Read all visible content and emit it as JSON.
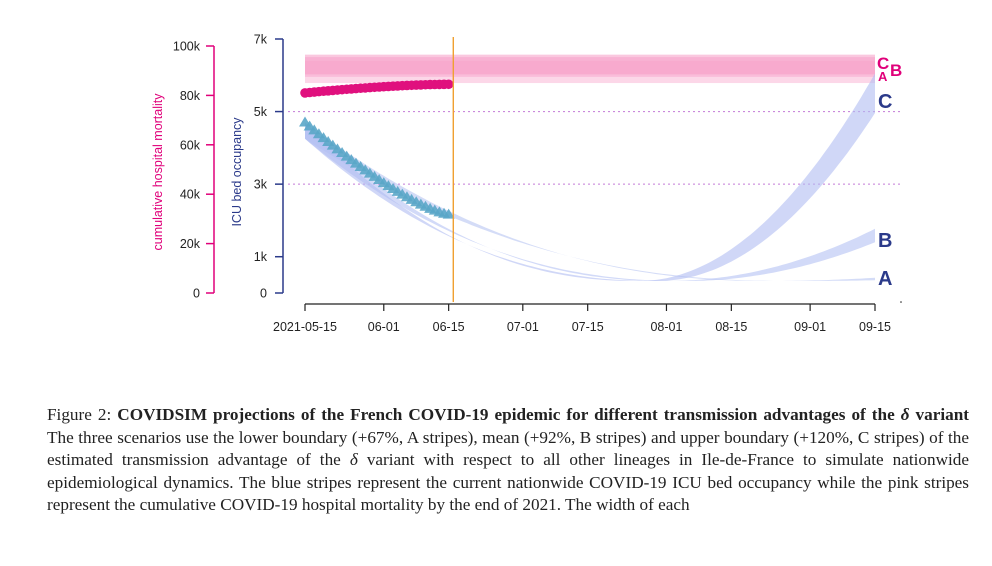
{
  "chart_data": {
    "type": "area",
    "x_ticks": [
      "2021-05-15",
      "06-01",
      "06-15",
      "07-01",
      "07-15",
      "08-01",
      "08-15",
      "09-01",
      "09-15"
    ],
    "x_tick_days": [
      0,
      17,
      31,
      47,
      61,
      78,
      92,
      109,
      123
    ],
    "today_day": 32,
    "left_axis": {
      "label": "cumulative hospital mortality",
      "ticks": [
        "0",
        "20k",
        "40k",
        "60k",
        "80k",
        "100k"
      ],
      "tick_values": [
        0,
        20000,
        40000,
        60000,
        80000,
        100000
      ],
      "color": "#e0007a"
    },
    "right_axis": {
      "label": "ICU bed occupancy",
      "ticks": [
        "0",
        "1k",
        "3k",
        "5k",
        "7k"
      ],
      "tick_values": [
        0,
        1000,
        3000,
        5000,
        7000
      ],
      "color": "#2b3a8a"
    },
    "reference_lines_icu": [
      3000,
      5000
    ],
    "observed_mortality": {
      "start_day": 0,
      "end_day": 31,
      "start_value": 81000,
      "end_value": 84500
    },
    "observed_icu": {
      "start_day": 0,
      "end_day": 31,
      "start_value": 4700,
      "end_value": 2160
    },
    "icu_scenarios": [
      {
        "name": "A",
        "end_low": 350,
        "end_high": 420,
        "min_day": 100
      },
      {
        "name": "B",
        "end_low": 1400,
        "end_high": 1770,
        "min_day": 78
      },
      {
        "name": "C",
        "end_low": 4960,
        "end_high": 6050,
        "min_day": 72
      }
    ],
    "mortality_scenarios": [
      {
        "name": "A",
        "low": 85000,
        "high": 94000
      },
      {
        "name": "B",
        "low": 87500,
        "high": 95500
      },
      {
        "name": "C",
        "low": 88500,
        "high": 96500
      }
    ],
    "scenario_labels_icu": [
      "A",
      "B",
      "C"
    ],
    "scenario_labels_mortality": [
      "C",
      "B",
      "A"
    ]
  },
  "caption": {
    "prefix": "Figure 2:",
    "title_a": "COVIDSIM projections of the French COVID-19 epidemic for different transmission advantages of the",
    "delta": "δ",
    "title_b": "variant",
    "body_a": "The three scenarios use the lower boundary (+67%, A stripes), mean (+92%, B stripes) and upper boundary (+120%, C stripes) of the estimated transmission advantage of the",
    "body_b": "variant with respect to all other lineages in Ile-de-France to simulate nationwide epidemiological dynamics. The blue stripes represent the current nationwide COVID-19 ICU bed occupancy while the pink stripes represent the cumulative COVID-19 hospital mortality by the end of 2021. The width of each"
  }
}
